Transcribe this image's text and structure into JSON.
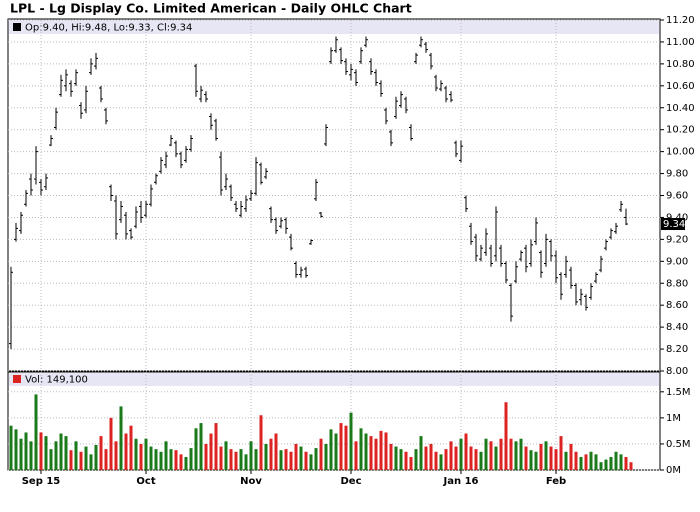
{
  "chart_data": {
    "type": "ohlc",
    "title": "LPL - Lg Display Co. Limited American - Daily OHLC Chart",
    "legend_text": "Op:9.40, Hi:9.48, Lo:9.33, Cl:9.34",
    "color": "#000000",
    "grid": true,
    "categories": [
      null,
      null,
      null,
      null,
      null,
      null,
      "Sep 15",
      null,
      null,
      null,
      null,
      null,
      null,
      null,
      null,
      null,
      null,
      null,
      null,
      null,
      null,
      null,
      null,
      null,
      null,
      null,
      null,
      "Oct",
      null,
      null,
      null,
      null,
      null,
      null,
      null,
      null,
      null,
      null,
      null,
      null,
      null,
      null,
      null,
      null,
      null,
      null,
      null,
      null,
      "Nov",
      null,
      null,
      null,
      null,
      null,
      null,
      null,
      null,
      null,
      null,
      null,
      null,
      null,
      null,
      null,
      null,
      null,
      null,
      null,
      "Dec",
      null,
      null,
      null,
      null,
      null,
      null,
      null,
      null,
      null,
      null,
      null,
      null,
      null,
      null,
      null,
      null,
      null,
      null,
      null,
      null,
      null,
      "Jan 16",
      null,
      null,
      null,
      null,
      null,
      null,
      null,
      null,
      null,
      null,
      null,
      null,
      null,
      null,
      null,
      null,
      null,
      null,
      "Feb",
      null,
      null,
      null,
      null,
      null,
      null,
      null,
      null,
      null,
      null,
      null,
      null,
      null,
      null
    ],
    "open": [
      8.25,
      9.2,
      9.28,
      9.52,
      9.75,
      9.75,
      9.72,
      9.68,
      10.06,
      10.22,
      10.52,
      10.6,
      10.62,
      10.62,
      10.42,
      10.38,
      10.72,
      10.78,
      10.58,
      10.38,
      9.68,
      9.55,
      9.38,
      9.42,
      9.28,
      9.32,
      9.5,
      9.42,
      9.52,
      9.72,
      9.82,
      9.88,
      10.06,
      10.08,
      9.98,
      9.92,
      10.02,
      10.78,
      10.48,
      10.52,
      10.32,
      10.28,
      9.95,
      9.68,
      9.68,
      9.52,
      9.42,
      9.48,
      9.57,
      9.62,
      9.88,
      9.77,
      9.48,
      9.38,
      9.32,
      9.38,
      9.22,
      8.98,
      8.88,
      8.93,
      9.16,
      9.57,
      9.44,
      10.07,
      10.82,
      10.92,
      10.93,
      10.82,
      10.7,
      10.72,
      10.82,
      10.97,
      10.82,
      10.72,
      10.62,
      10.38,
      10.18,
      10.32,
      10.42,
      10.48,
      10.22,
      10.82,
      10.97,
      10.98,
      10.88,
      10.68,
      10.57,
      10.58,
      10.52,
      10.08,
      9.92,
      9.58,
      9.32,
      9.22,
      9.02,
      9.08,
      9.12,
      9.05,
      9.12,
      8.98,
      8.78,
      8.82,
      9.02,
      9.12,
      8.98,
      9.18,
      9.08,
      8.98,
      9.18,
      9.05,
      8.88,
      8.88,
      8.92,
      8.78,
      8.65,
      8.68,
      8.67,
      8.82,
      8.92,
      9.12,
      9.22,
      9.27,
      9.47,
      9.4
    ],
    "high": [
      8.95,
      9.35,
      9.45,
      9.65,
      9.8,
      10.05,
      9.75,
      9.8,
      10.15,
      10.4,
      10.7,
      10.75,
      10.65,
      10.75,
      10.45,
      10.6,
      10.85,
      10.9,
      10.6,
      10.4,
      9.7,
      9.6,
      9.55,
      9.45,
      9.3,
      9.5,
      9.55,
      9.55,
      9.7,
      9.8,
      9.95,
      10.0,
      10.15,
      10.1,
      10.0,
      10.05,
      10.15,
      10.8,
      10.6,
      10.55,
      10.35,
      10.3,
      10.0,
      9.8,
      9.7,
      9.55,
      9.55,
      9.6,
      9.65,
      9.95,
      9.9,
      9.85,
      9.5,
      9.4,
      9.4,
      9.4,
      9.25,
      9.0,
      8.95,
      8.95,
      9.2,
      9.75,
      9.45,
      10.25,
      10.95,
      11.05,
      10.95,
      10.85,
      10.8,
      10.75,
      10.95,
      11.05,
      10.85,
      10.75,
      10.65,
      10.4,
      10.2,
      10.5,
      10.55,
      10.5,
      10.25,
      10.9,
      11.05,
      11.0,
      10.9,
      10.7,
      10.65,
      10.6,
      10.55,
      10.1,
      10.1,
      9.6,
      9.35,
      9.25,
      9.15,
      9.3,
      9.15,
      9.5,
      9.15,
      9.0,
      8.8,
      9.0,
      9.1,
      9.15,
      9.2,
      9.4,
      9.1,
      9.25,
      9.2,
      9.1,
      8.9,
      9.05,
      8.95,
      8.8,
      8.75,
      8.7,
      8.8,
      8.9,
      9.05,
      9.2,
      9.3,
      9.35,
      9.55,
      9.48
    ],
    "low": [
      8.2,
      9.18,
      9.25,
      9.5,
      9.6,
      9.7,
      9.6,
      9.65,
      10.05,
      10.2,
      10.5,
      10.55,
      10.5,
      10.6,
      10.3,
      10.35,
      10.7,
      10.75,
      10.45,
      10.25,
      9.55,
      9.2,
      9.35,
      9.2,
      9.2,
      9.3,
      9.35,
      9.4,
      9.5,
      9.7,
      9.8,
      9.85,
      10.05,
      9.95,
      9.85,
      9.9,
      10.0,
      10.5,
      10.45,
      10.45,
      10.2,
      10.1,
      9.6,
      9.65,
      9.55,
      9.45,
      9.4,
      9.45,
      9.55,
      9.6,
      9.7,
      9.75,
      9.35,
      9.25,
      9.3,
      9.25,
      9.1,
      8.85,
      8.85,
      8.85,
      9.15,
      9.55,
      9.4,
      10.05,
      10.8,
      10.9,
      10.8,
      10.7,
      10.65,
      10.6,
      10.8,
      10.95,
      10.7,
      10.6,
      10.5,
      10.25,
      10.05,
      10.3,
      10.4,
      10.35,
      10.1,
      10.8,
      10.95,
      10.9,
      10.75,
      10.55,
      10.55,
      10.45,
      10.45,
      9.95,
      9.9,
      9.45,
      9.15,
      9.0,
      9.0,
      9.05,
      8.95,
      9.0,
      8.95,
      8.8,
      8.45,
      8.8,
      9.0,
      8.9,
      8.95,
      9.15,
      8.85,
      8.95,
      9.0,
      8.8,
      8.65,
      8.85,
      8.75,
      8.6,
      8.6,
      8.55,
      8.65,
      8.8,
      8.9,
      9.1,
      9.2,
      9.25,
      9.45,
      9.33
    ],
    "close": [
      8.9,
      9.3,
      9.42,
      9.62,
      9.65,
      10.0,
      9.65,
      9.76,
      10.12,
      10.36,
      10.65,
      10.7,
      10.55,
      10.72,
      10.35,
      10.55,
      10.8,
      10.85,
      10.48,
      10.28,
      9.6,
      9.25,
      9.5,
      9.25,
      9.22,
      9.45,
      9.4,
      9.52,
      9.66,
      9.78,
      9.92,
      9.96,
      10.12,
      9.98,
      9.88,
      10.02,
      10.12,
      10.55,
      10.56,
      10.48,
      10.24,
      10.12,
      9.65,
      9.75,
      9.58,
      9.48,
      9.5,
      9.56,
      9.62,
      9.9,
      9.72,
      9.82,
      9.38,
      9.28,
      9.37,
      9.3,
      9.12,
      8.88,
      8.92,
      8.87,
      9.19,
      9.72,
      9.41,
      10.22,
      10.92,
      11.02,
      10.83,
      10.73,
      10.75,
      10.63,
      10.92,
      11.02,
      10.73,
      10.63,
      10.53,
      10.28,
      10.08,
      10.46,
      10.52,
      10.38,
      10.12,
      10.88,
      11.02,
      10.93,
      10.78,
      10.58,
      10.62,
      10.48,
      10.47,
      9.98,
      10.05,
      9.48,
      9.18,
      9.05,
      9.12,
      9.25,
      8.98,
      9.45,
      8.98,
      8.83,
      8.5,
      8.95,
      9.08,
      8.95,
      9.15,
      9.35,
      8.9,
      9.2,
      9.05,
      8.85,
      8.7,
      9.0,
      8.78,
      8.63,
      8.7,
      8.58,
      8.77,
      8.88,
      9.02,
      9.18,
      9.28,
      9.32,
      9.52,
      9.34
    ],
    "ylim": [
      8.0,
      11.2
    ],
    "yticks": [
      {
        "value": 8.0,
        "label": "8.00"
      },
      {
        "value": 8.2,
        "label": "8.20"
      },
      {
        "value": 8.4,
        "label": "8.40"
      },
      {
        "value": 8.6,
        "label": "8.60"
      },
      {
        "value": 8.8,
        "label": "8.80"
      },
      {
        "value": 9.0,
        "label": "9.00"
      },
      {
        "value": 9.2,
        "label": "9.20"
      },
      {
        "value": 9.4,
        "label": "9.40"
      },
      {
        "value": 9.6,
        "label": "9.60"
      },
      {
        "value": 9.8,
        "label": "9.80"
      },
      {
        "value": 10.0,
        "label": "10.00"
      },
      {
        "value": 10.2,
        "label": "10.20"
      },
      {
        "value": 10.4,
        "label": "10.40"
      },
      {
        "value": 10.6,
        "label": "10.60"
      },
      {
        "value": 10.8,
        "label": "10.80"
      },
      {
        "value": 11.0,
        "label": "11.00"
      },
      {
        "value": 11.2,
        "label": "11.20"
      }
    ],
    "volume": {
      "label": "Vol: 149,100",
      "up_color": "#1a7a1a",
      "down_color": "#dd2222",
      "values": [
        850000,
        780000,
        600000,
        720000,
        550000,
        1450000,
        720000,
        650000,
        400000,
        550000,
        700000,
        650000,
        380000,
        550000,
        350000,
        450000,
        300000,
        480000,
        650000,
        400000,
        1000000,
        550000,
        1220000,
        700000,
        850000,
        600000,
        500000,
        600000,
        450000,
        400000,
        350000,
        550000,
        400000,
        380000,
        300000,
        250000,
        420000,
        800000,
        900000,
        500000,
        700000,
        900000,
        450000,
        550000,
        400000,
        350000,
        400000,
        300000,
        550000,
        400000,
        1050000,
        500000,
        600000,
        700000,
        380000,
        400000,
        350000,
        500000,
        450000,
        350000,
        300000,
        420000,
        600000,
        500000,
        780000,
        700000,
        900000,
        850000,
        1100000,
        550000,
        800000,
        700000,
        650000,
        600000,
        750000,
        720000,
        500000,
        450000,
        400000,
        350000,
        250000,
        400000,
        650000,
        450000,
        500000,
        350000,
        300000,
        400000,
        550000,
        450000,
        600000,
        700000,
        450000,
        400000,
        350000,
        600000,
        550000,
        450000,
        600000,
        1300000,
        600000,
        550000,
        600000,
        450000,
        380000,
        350000,
        500000,
        550000,
        450000,
        400000,
        650000,
        350000,
        500000,
        350000,
        250000,
        300000,
        350000,
        300000,
        150000,
        200000,
        250000,
        350000,
        300000,
        250000,
        149100
      ],
      "ylim": [
        0,
        1880000
      ],
      "yticks": [
        {
          "value": 0,
          "label": "0M"
        },
        {
          "value": 500000,
          "label": "0.5M"
        },
        {
          "value": 1000000,
          "label": "1M"
        },
        {
          "value": 1500000,
          "label": "1.5M"
        }
      ]
    }
  }
}
